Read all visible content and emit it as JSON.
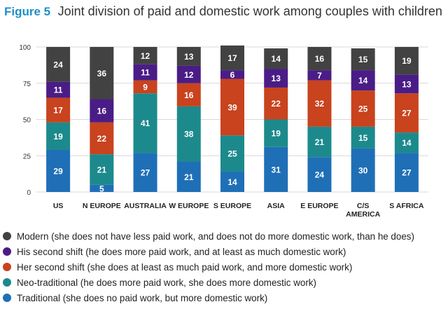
{
  "header": {
    "figure_label": "Figure 5",
    "title": "Joint division of paid and domestic work among couples with children"
  },
  "colors": {
    "modern": "#424242",
    "his_second_shift": "#4a1d86",
    "her_second_shift": "#c8431e",
    "neo_traditional": "#1c8a8c",
    "traditional": "#1f6fb7",
    "figure_label": "#1f8fc6",
    "grid": "#d8d8d8"
  },
  "legend": [
    {
      "key": "modern",
      "label": "Modern (she does not have less paid work, and does not do more domestic work, than he does)"
    },
    {
      "key": "his_second_shift",
      "label": "His second shift (he does more paid work, and at least as much domestic work)"
    },
    {
      "key": "her_second_shift",
      "label": "Her second shift (she does at least as much paid work, and more domestic work)"
    },
    {
      "key": "neo_traditional",
      "label": "Neo-traditional (he does more paid work, she does more domestic work)"
    },
    {
      "key": "traditional",
      "label": "Traditional (she does no paid work, but more domestic work)"
    }
  ],
  "chart_data": {
    "type": "bar",
    "stacked": true,
    "categories": [
      "US",
      "N EUROPE",
      "AUSTRALIA",
      "W EUROPE",
      "S EUROPE",
      "ASIA",
      "E EUROPE",
      "C/S AMERICA",
      "S AFRICA"
    ],
    "category_lines": [
      [
        "US"
      ],
      [
        "N EUROPE"
      ],
      [
        "AUSTRALIA"
      ],
      [
        "W EUROPE"
      ],
      [
        "S EUROPE"
      ],
      [
        "ASIA"
      ],
      [
        "E EUROPE"
      ],
      [
        "C/S",
        "AMERICA"
      ],
      [
        "S AFRICA"
      ]
    ],
    "yticks": [
      0,
      25,
      50,
      75,
      100
    ],
    "ylim": [
      0,
      100
    ],
    "grid": true,
    "legend_position": "bottom",
    "series": [
      {
        "key": "traditional",
        "values": [
          29,
          5,
          27,
          21,
          14,
          31,
          24,
          30,
          27
        ]
      },
      {
        "key": "neo_traditional",
        "values": [
          19,
          21,
          41,
          38,
          25,
          19,
          21,
          15,
          14
        ]
      },
      {
        "key": "her_second_shift",
        "values": [
          17,
          22,
          9,
          16,
          39,
          22,
          32,
          25,
          27
        ]
      },
      {
        "key": "his_second_shift",
        "values": [
          11,
          16,
          11,
          12,
          6,
          13,
          7,
          14,
          13
        ]
      },
      {
        "key": "modern",
        "values": [
          24,
          36,
          12,
          13,
          17,
          14,
          16,
          15,
          19
        ]
      }
    ]
  }
}
